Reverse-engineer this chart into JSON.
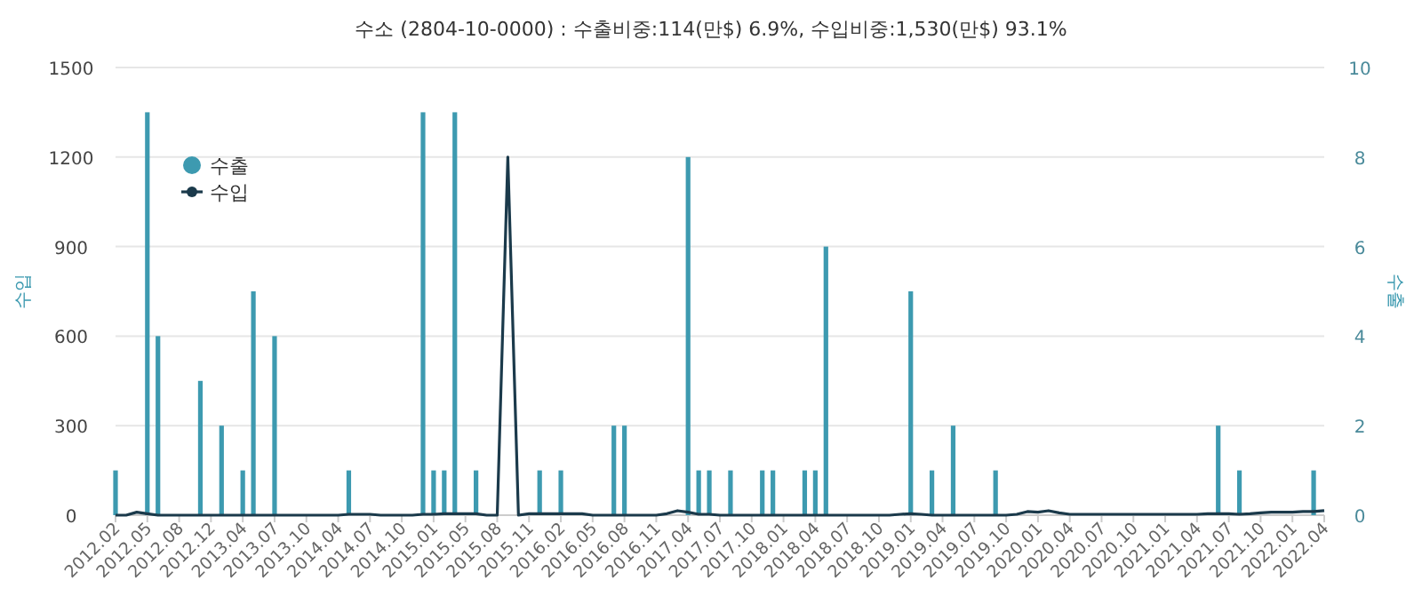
{
  "chart_data": {
    "type": "bar",
    "title": "수소 (2804-10-0000) : 수출비중:114(만$) 6.9%, 수입비중:1,530(만$) 93.1%",
    "ylabel": "수입",
    "y2label": "수출",
    "categories": [
      "2012.02",
      null,
      null,
      "2012.05",
      null,
      null,
      "2012.08",
      null,
      null,
      "2012.12",
      null,
      null,
      "2013.04",
      null,
      null,
      "2013.07",
      null,
      null,
      "2013.10",
      null,
      null,
      "2014.04",
      null,
      null,
      "2014.07",
      null,
      null,
      "2014.10",
      null,
      null,
      "2015.01",
      null,
      null,
      "2015.05",
      null,
      null,
      "2015.08",
      null,
      null,
      "2015.11",
      null,
      null,
      "2016.02",
      null,
      null,
      "2016.05",
      null,
      null,
      "2016.08",
      null,
      null,
      "2016.11",
      null,
      null,
      "2017.04",
      null,
      null,
      "2017.07",
      null,
      null,
      "2017.10",
      null,
      null,
      "2018.01",
      null,
      null,
      "2018.04",
      null,
      null,
      "2018.07",
      null,
      null,
      "2018.10",
      null,
      null,
      "2019.01",
      null,
      null,
      "2019.04",
      null,
      null,
      "2019.07",
      null,
      null,
      "2019.10",
      null,
      null,
      "2020.01",
      null,
      null,
      "2020.04",
      null,
      null,
      "2020.07",
      null,
      null,
      "2020.10",
      null,
      null,
      "2021.01",
      null,
      null,
      "2021.04",
      null,
      null,
      "2021.07",
      null,
      null,
      "2021.10",
      null,
      null,
      "2022.01",
      null,
      null,
      "2022.04"
    ],
    "series": [
      {
        "name": "수출",
        "axis": "y2",
        "color": "#3d9ab0",
        "values": [
          1,
          0,
          0,
          9,
          4,
          0,
          0,
          0,
          3,
          0,
          2,
          0,
          1,
          5,
          0,
          4,
          0,
          0,
          0,
          0,
          0,
          0,
          1,
          0,
          0,
          0,
          0,
          0,
          0,
          9,
          1,
          1,
          9,
          0,
          1,
          0,
          0,
          0,
          0,
          0,
          1,
          0,
          1,
          0,
          0,
          0,
          0,
          2,
          2,
          0,
          0,
          0,
          0,
          0,
          8,
          1,
          1,
          0,
          1,
          0,
          0,
          1,
          1,
          0,
          0,
          1,
          1,
          6,
          0,
          0,
          0,
          0,
          0,
          0,
          0,
          5,
          0,
          1,
          0,
          2,
          0,
          0,
          0,
          1,
          0,
          0,
          0,
          0,
          0,
          0,
          0,
          0,
          0,
          0,
          0,
          0,
          0,
          0,
          0,
          0,
          0,
          0,
          0,
          0,
          2,
          0,
          1,
          0,
          0,
          0,
          0,
          0,
          0,
          1,
          0
        ]
      },
      {
        "name": "수입",
        "type": "line",
        "color": "#1b3a4b",
        "values": [
          0,
          0,
          10,
          5,
          0,
          0,
          0,
          0,
          0,
          0,
          0,
          0,
          0,
          0,
          0,
          0,
          0,
          0,
          0,
          0,
          0,
          0,
          3,
          3,
          3,
          0,
          0,
          0,
          0,
          3,
          3,
          5,
          5,
          5,
          5,
          0,
          0,
          1200,
          0,
          5,
          5,
          5,
          5,
          5,
          5,
          0,
          0,
          0,
          0,
          0,
          0,
          0,
          5,
          15,
          10,
          3,
          3,
          0,
          0,
          0,
          0,
          0,
          0,
          0,
          0,
          0,
          0,
          0,
          0,
          0,
          0,
          0,
          0,
          0,
          3,
          5,
          3,
          0,
          0,
          0,
          0,
          0,
          0,
          0,
          0,
          3,
          12,
          10,
          15,
          8,
          3,
          3,
          3,
          3,
          3,
          3,
          3,
          3,
          3,
          3,
          3,
          3,
          3,
          5,
          5,
          5,
          3,
          5,
          8,
          10,
          10,
          10,
          12,
          12,
          15
        ]
      }
    ],
    "ylim": [
      0,
      1500
    ],
    "yticks": [
      0,
      300,
      600,
      900,
      1200,
      1500
    ],
    "y2lim": [
      0,
      10
    ],
    "y2ticks": [
      0,
      2,
      4,
      6,
      8,
      10
    ],
    "grid": "y",
    "legend": "top left"
  }
}
